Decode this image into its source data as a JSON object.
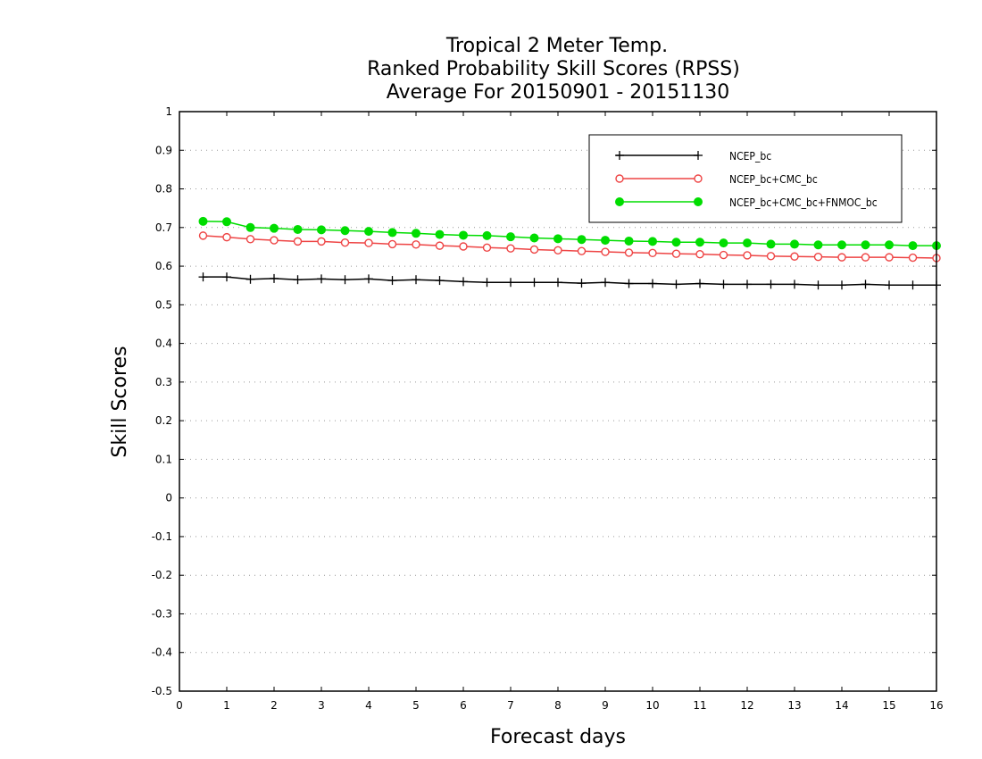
{
  "chart_data": {
    "type": "line",
    "title": [
      "Tropical 2 Meter Temp.",
      "Ranked Probability Skill Scores (RPSS)",
      "Average For 20150901 - 20151130"
    ],
    "xlabel": "Forecast days",
    "ylabel": "Skill Scores",
    "xlim": [
      0,
      16
    ],
    "ylim": [
      -0.5,
      1
    ],
    "xticks": [
      0,
      1,
      2,
      3,
      4,
      5,
      6,
      7,
      8,
      9,
      10,
      11,
      12,
      13,
      14,
      15,
      16
    ],
    "yticks": [
      -0.5,
      -0.4,
      -0.3,
      -0.2,
      -0.1,
      0,
      0.1,
      0.2,
      0.3,
      0.4,
      0.5,
      0.6,
      0.7,
      0.8,
      0.9,
      1
    ],
    "ytick_labels": [
      "-0.5",
      "-0.4",
      "-0.3",
      "-0.2",
      "-0.1",
      "0",
      "0.1",
      "0.2",
      "0.3",
      "0.4",
      "0.5",
      "0.6",
      "0.7",
      "0.8",
      "0.9",
      "1"
    ],
    "grid": "horizontal dotted",
    "legend_position": "top-right",
    "x": [
      0.5,
      1,
      1.5,
      2,
      2.5,
      3,
      3.5,
      4,
      4.5,
      5,
      5.5,
      6,
      6.5,
      7,
      7.5,
      8,
      8.5,
      9,
      9.5,
      10,
      10.5,
      11,
      11.5,
      12,
      12.5,
      13,
      13.5,
      14,
      14.5,
      15,
      15.5,
      16
    ],
    "series": [
      {
        "name": "NCEP_bc",
        "color": "#000000",
        "marker": "plus",
        "values": [
          0.572,
          0.572,
          0.566,
          0.568,
          0.565,
          0.567,
          0.565,
          0.567,
          0.563,
          0.565,
          0.563,
          0.56,
          0.558,
          0.558,
          0.558,
          0.558,
          0.556,
          0.558,
          0.555,
          0.555,
          0.553,
          0.555,
          0.553,
          0.553,
          0.553,
          0.553,
          0.551,
          0.551,
          0.553,
          0.551,
          0.551,
          0.551
        ]
      },
      {
        "name": "NCEP_bc+CMC_bc",
        "color": "#ee4444",
        "marker": "open-circle",
        "values": [
          0.679,
          0.675,
          0.67,
          0.667,
          0.664,
          0.664,
          0.661,
          0.66,
          0.657,
          0.656,
          0.653,
          0.651,
          0.648,
          0.646,
          0.643,
          0.641,
          0.639,
          0.637,
          0.635,
          0.634,
          0.632,
          0.631,
          0.629,
          0.628,
          0.626,
          0.625,
          0.624,
          0.623,
          0.623,
          0.623,
          0.622,
          0.621
        ]
      },
      {
        "name": "NCEP_bc+CMC_bc+FNMOC_bc",
        "color": "#00dd00",
        "marker": "filled-circle",
        "values": [
          0.716,
          0.715,
          0.7,
          0.698,
          0.695,
          0.694,
          0.692,
          0.69,
          0.687,
          0.685,
          0.682,
          0.68,
          0.679,
          0.676,
          0.673,
          0.671,
          0.669,
          0.667,
          0.665,
          0.664,
          0.662,
          0.662,
          0.66,
          0.66,
          0.657,
          0.657,
          0.655,
          0.655,
          0.655,
          0.655,
          0.653,
          0.653
        ]
      }
    ]
  }
}
